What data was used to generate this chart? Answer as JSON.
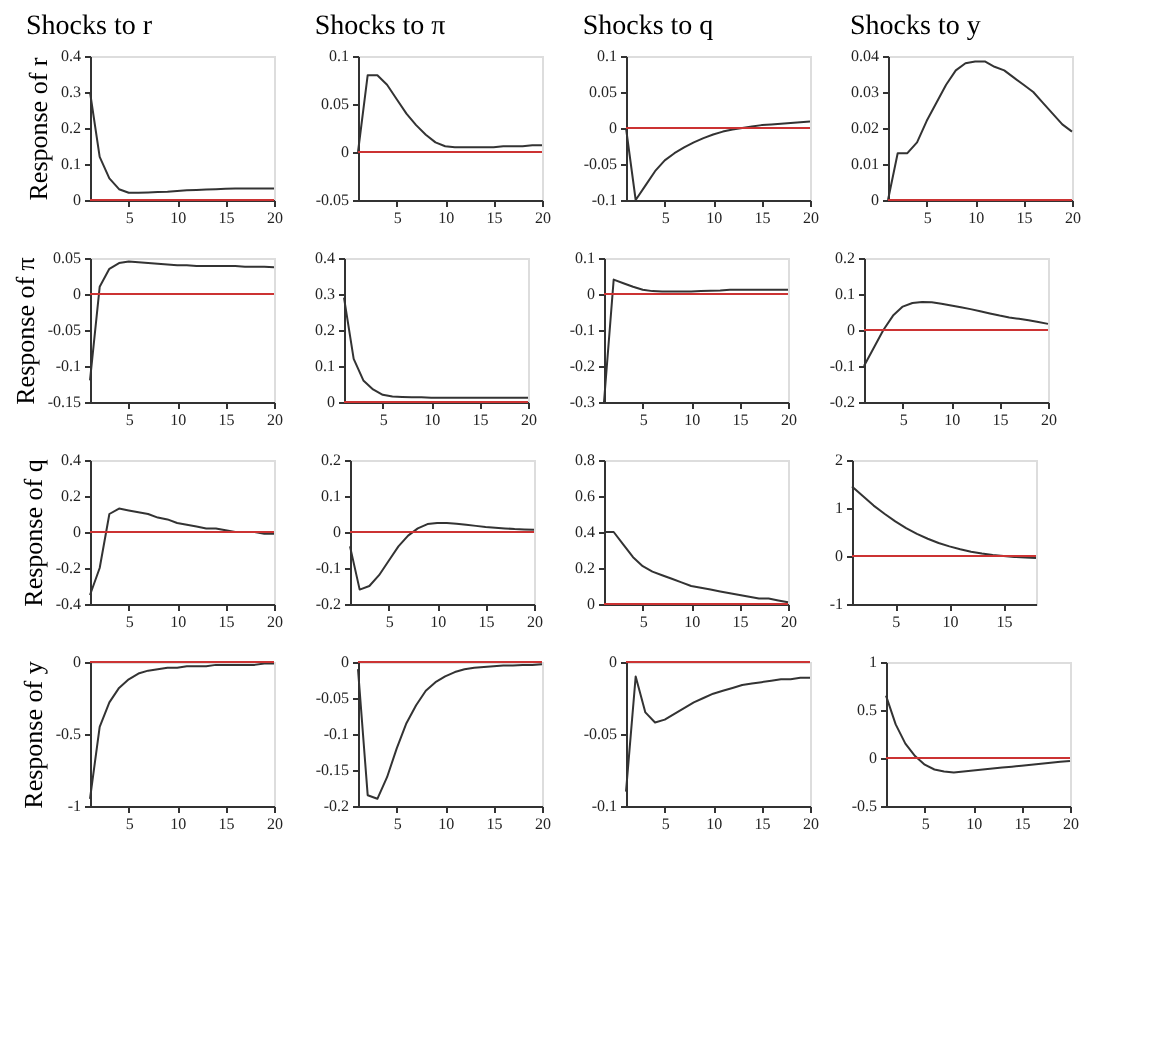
{
  "chart_data": [
    {
      "type": "line",
      "title": "Shocks to r",
      "ylabel": "Response of r",
      "x": [
        1,
        2,
        3,
        4,
        5,
        6,
        7,
        8,
        9,
        10,
        11,
        12,
        13,
        14,
        15,
        16,
        17,
        18,
        19,
        20
      ],
      "xlim": [
        1,
        20
      ],
      "xticks": [
        5,
        10,
        15,
        20
      ],
      "ylim": [
        0,
        0.4
      ],
      "yticks": [
        0,
        0.1,
        0.2,
        0.3,
        0.4
      ],
      "grid": false,
      "ref_lines": [
        {
          "axis": "y",
          "value": 0,
          "color": "#cc3333"
        }
      ],
      "series": [
        {
          "color": "#333333",
          "values": [
            0.3,
            0.12,
            0.06,
            0.03,
            0.02,
            0.02,
            0.021,
            0.022,
            0.023,
            0.025,
            0.027,
            0.028,
            0.029,
            0.03,
            0.031,
            0.032,
            0.032,
            0.032,
            0.032,
            0.032
          ]
        }
      ]
    },
    {
      "type": "line",
      "title": "Shocks to π",
      "x": [
        1,
        2,
        3,
        4,
        5,
        6,
        7,
        8,
        9,
        10,
        11,
        12,
        13,
        14,
        15,
        16,
        17,
        18,
        19,
        20
      ],
      "xlim": [
        1,
        20
      ],
      "xticks": [
        5,
        10,
        15,
        20
      ],
      "ylim": [
        -0.05,
        0.1
      ],
      "yticks": [
        -0.05,
        0,
        0.05,
        0.1
      ],
      "grid": false,
      "ref_lines": [
        {
          "axis": "y",
          "value": 0,
          "color": "#cc3333"
        }
      ],
      "series": [
        {
          "color": "#333333",
          "values": [
            0,
            0.08,
            0.08,
            0.07,
            0.055,
            0.04,
            0.028,
            0.018,
            0.01,
            0.006,
            0.005,
            0.005,
            0.005,
            0.005,
            0.005,
            0.006,
            0.006,
            0.006,
            0.007,
            0.007
          ]
        }
      ]
    },
    {
      "type": "line",
      "title": "Shocks to q",
      "x": [
        1,
        2,
        3,
        4,
        5,
        6,
        7,
        8,
        9,
        10,
        11,
        12,
        13,
        14,
        15,
        16,
        17,
        18,
        19,
        20
      ],
      "xlim": [
        1,
        20
      ],
      "xticks": [
        5,
        10,
        15,
        20
      ],
      "ylim": [
        -0.1,
        0.1
      ],
      "yticks": [
        -0.1,
        -0.05,
        0,
        0.05,
        0.1
      ],
      "grid": false,
      "ref_lines": [
        {
          "axis": "y",
          "value": 0,
          "color": "#cc3333"
        }
      ],
      "series": [
        {
          "color": "#333333",
          "values": [
            0,
            -0.1,
            -0.08,
            -0.06,
            -0.045,
            -0.035,
            -0.027,
            -0.02,
            -0.014,
            -0.009,
            -0.005,
            -0.002,
            0,
            0.002,
            0.004,
            0.005,
            0.006,
            0.007,
            0.008,
            0.009
          ]
        }
      ]
    },
    {
      "type": "line",
      "title": "Shocks to y",
      "x": [
        1,
        2,
        3,
        4,
        5,
        6,
        7,
        8,
        9,
        10,
        11,
        12,
        13,
        14,
        15,
        16,
        17,
        18,
        19,
        20
      ],
      "xlim": [
        1,
        20
      ],
      "xticks": [
        5,
        10,
        15,
        20
      ],
      "ylim": [
        0,
        0.04
      ],
      "yticks": [
        0,
        0.01,
        0.02,
        0.03,
        0.04
      ],
      "grid": false,
      "ref_lines": [
        {
          "axis": "y",
          "value": 0,
          "color": "#cc3333"
        }
      ],
      "series": [
        {
          "color": "#333333",
          "values": [
            0,
            0.013,
            0.013,
            0.016,
            0.022,
            0.027,
            0.032,
            0.036,
            0.038,
            0.0385,
            0.0385,
            0.037,
            0.036,
            0.034,
            0.032,
            0.03,
            0.027,
            0.024,
            0.021,
            0.019
          ]
        }
      ]
    },
    {
      "type": "line",
      "ylabel": "Response of π",
      "x": [
        1,
        2,
        3,
        4,
        5,
        6,
        7,
        8,
        9,
        10,
        11,
        12,
        13,
        14,
        15,
        16,
        17,
        18,
        19,
        20
      ],
      "xlim": [
        1,
        20
      ],
      "xticks": [
        5,
        10,
        15,
        20
      ],
      "ylim": [
        -0.15,
        0.05
      ],
      "yticks": [
        -0.15,
        -0.1,
        -0.05,
        0,
        0.05
      ],
      "grid": false,
      "ref_lines": [
        {
          "axis": "y",
          "value": 0,
          "color": "#cc3333"
        }
      ],
      "series": [
        {
          "color": "#333333",
          "values": [
            -0.12,
            0.01,
            0.035,
            0.043,
            0.045,
            0.044,
            0.043,
            0.042,
            0.041,
            0.04,
            0.04,
            0.039,
            0.039,
            0.039,
            0.039,
            0.039,
            0.038,
            0.038,
            0.038,
            0.037
          ]
        }
      ]
    },
    {
      "type": "line",
      "x": [
        1,
        2,
        3,
        4,
        5,
        6,
        7,
        8,
        9,
        10,
        11,
        12,
        13,
        14,
        15,
        16,
        17,
        18,
        19,
        20
      ],
      "xlim": [
        1,
        20
      ],
      "xticks": [
        5,
        10,
        15,
        20
      ],
      "ylim": [
        0,
        0.4
      ],
      "yticks": [
        0,
        0.1,
        0.2,
        0.3,
        0.4
      ],
      "grid": false,
      "ref_lines": [
        {
          "axis": "y",
          "value": 0,
          "color": "#cc3333"
        }
      ],
      "series": [
        {
          "color": "#333333",
          "values": [
            0.29,
            0.12,
            0.06,
            0.035,
            0.02,
            0.015,
            0.014,
            0.013,
            0.013,
            0.012,
            0.012,
            0.012,
            0.012,
            0.012,
            0.012,
            0.012,
            0.012,
            0.012,
            0.012,
            0.012
          ]
        }
      ]
    },
    {
      "type": "line",
      "x": [
        1,
        2,
        3,
        4,
        5,
        6,
        7,
        8,
        9,
        10,
        11,
        12,
        13,
        14,
        15,
        16,
        17,
        18,
        19,
        20
      ],
      "xlim": [
        1,
        20
      ],
      "xticks": [
        5,
        10,
        15,
        20
      ],
      "ylim": [
        -0.3,
        0.1
      ],
      "yticks": [
        -0.3,
        -0.2,
        -0.1,
        0,
        0.1
      ],
      "grid": false,
      "ref_lines": [
        {
          "axis": "y",
          "value": 0,
          "color": "#cc3333"
        }
      ],
      "series": [
        {
          "color": "#333333",
          "values": [
            -0.3,
            0.04,
            0.03,
            0.02,
            0.012,
            0.008,
            0.007,
            0.007,
            0.007,
            0.007,
            0.008,
            0.009,
            0.01,
            0.012,
            0.012,
            0.012,
            0.012,
            0.012,
            0.012,
            0.012
          ]
        }
      ]
    },
    {
      "type": "line",
      "x": [
        1,
        2,
        3,
        4,
        5,
        6,
        7,
        8,
        9,
        10,
        11,
        12,
        13,
        14,
        15,
        16,
        17,
        18,
        19,
        20
      ],
      "xlim": [
        1,
        20
      ],
      "xticks": [
        5,
        10,
        15,
        20
      ],
      "ylim": [
        -0.2,
        0.2
      ],
      "yticks": [
        -0.2,
        -0.1,
        0,
        0.1,
        0.2
      ],
      "grid": false,
      "ref_lines": [
        {
          "axis": "y",
          "value": 0,
          "color": "#cc3333"
        }
      ],
      "series": [
        {
          "color": "#333333",
          "values": [
            -0.1,
            -0.05,
            0,
            0.04,
            0.065,
            0.075,
            0.078,
            0.077,
            0.073,
            0.068,
            0.063,
            0.058,
            0.052,
            0.046,
            0.04,
            0.035,
            0.031,
            0.027,
            0.022,
            0.017
          ]
        }
      ]
    },
    {
      "type": "line",
      "ylabel": "Response of q",
      "x": [
        1,
        2,
        3,
        4,
        5,
        6,
        7,
        8,
        9,
        10,
        11,
        12,
        13,
        14,
        15,
        16,
        17,
        18,
        19,
        20
      ],
      "xlim": [
        1,
        20
      ],
      "xticks": [
        5,
        10,
        15,
        20
      ],
      "ylim": [
        -0.4,
        0.4
      ],
      "yticks": [
        -0.4,
        -0.2,
        0,
        0.2,
        0.4
      ],
      "grid": false,
      "ref_lines": [
        {
          "axis": "y",
          "value": 0,
          "color": "#cc3333"
        }
      ],
      "series": [
        {
          "color": "#333333",
          "values": [
            -0.35,
            -0.2,
            0.1,
            0.13,
            0.12,
            0.11,
            0.1,
            0.08,
            0.07,
            0.05,
            0.04,
            0.03,
            0.02,
            0.02,
            0.01,
            0,
            0,
            0,
            -0.01,
            -0.01
          ]
        }
      ]
    },
    {
      "type": "line",
      "x": [
        1,
        2,
        3,
        4,
        5,
        6,
        7,
        8,
        9,
        10,
        11,
        12,
        13,
        14,
        15,
        16,
        17,
        18,
        19,
        20
      ],
      "xlim": [
        1,
        20
      ],
      "xticks": [
        5,
        10,
        15,
        20
      ],
      "ylim": [
        -0.2,
        0.2
      ],
      "yticks": [
        -0.2,
        -0.1,
        0,
        0.1,
        0.2
      ],
      "grid": false,
      "ref_lines": [
        {
          "axis": "y",
          "value": 0,
          "color": "#cc3333"
        }
      ],
      "series": [
        {
          "color": "#333333",
          "values": [
            -0.04,
            -0.16,
            -0.15,
            -0.12,
            -0.08,
            -0.04,
            -0.01,
            0.01,
            0.022,
            0.025,
            0.025,
            0.023,
            0.02,
            0.017,
            0.014,
            0.012,
            0.01,
            0.008,
            0.007,
            0.006
          ]
        }
      ]
    },
    {
      "type": "line",
      "x": [
        1,
        2,
        3,
        4,
        5,
        6,
        7,
        8,
        9,
        10,
        11,
        12,
        13,
        14,
        15,
        16,
        17,
        18,
        19,
        20
      ],
      "xlim": [
        1,
        20
      ],
      "xticks": [
        5,
        10,
        15,
        20
      ],
      "ylim": [
        0,
        0.8
      ],
      "yticks": [
        0,
        0.2,
        0.4,
        0.6,
        0.8
      ],
      "grid": false,
      "ref_lines": [
        {
          "axis": "y",
          "value": 0,
          "color": "#cc3333"
        }
      ],
      "series": [
        {
          "color": "#333333",
          "values": [
            0.4,
            0.4,
            0.33,
            0.26,
            0.21,
            0.18,
            0.16,
            0.14,
            0.12,
            0.1,
            0.09,
            0.08,
            0.07,
            0.06,
            0.05,
            0.04,
            0.03,
            0.03,
            0.02,
            0.01
          ]
        }
      ]
    },
    {
      "type": "line",
      "x": [
        1,
        2,
        3,
        4,
        5,
        6,
        7,
        8,
        9,
        10,
        11,
        12,
        13,
        14,
        15,
        16,
        17,
        18
      ],
      "xlim": [
        1,
        18
      ],
      "xticks": [
        5,
        10,
        15
      ],
      "ylim": [
        -1,
        2
      ],
      "yticks": [
        -1,
        0,
        1,
        2
      ],
      "grid": false,
      "ref_lines": [
        {
          "axis": "y",
          "value": 0,
          "color": "#cc3333"
        }
      ],
      "series": [
        {
          "color": "#333333",
          "values": [
            1.45,
            1.25,
            1.05,
            0.88,
            0.72,
            0.58,
            0.46,
            0.36,
            0.27,
            0.2,
            0.14,
            0.09,
            0.05,
            0.02,
            0,
            -0.02,
            -0.03,
            -0.04
          ]
        }
      ]
    },
    {
      "type": "line",
      "ylabel": "Response of y",
      "x": [
        1,
        2,
        3,
        4,
        5,
        6,
        7,
        8,
        9,
        10,
        11,
        12,
        13,
        14,
        15,
        16,
        17,
        18,
        19,
        20
      ],
      "xlim": [
        1,
        20
      ],
      "xticks": [
        5,
        10,
        15,
        20
      ],
      "ylim": [
        -1,
        0
      ],
      "yticks": [
        -1,
        -0.5,
        0
      ],
      "grid": false,
      "ref_lines": [
        {
          "axis": "y",
          "value": 0,
          "color": "#cc3333"
        }
      ],
      "series": [
        {
          "color": "#333333",
          "values": [
            -0.95,
            -0.45,
            -0.28,
            -0.18,
            -0.12,
            -0.08,
            -0.06,
            -0.05,
            -0.04,
            -0.04,
            -0.03,
            -0.03,
            -0.03,
            -0.02,
            -0.02,
            -0.02,
            -0.02,
            -0.02,
            -0.01,
            -0.01
          ]
        }
      ]
    },
    {
      "type": "line",
      "x": [
        1,
        2,
        3,
        4,
        5,
        6,
        7,
        8,
        9,
        10,
        11,
        12,
        13,
        14,
        15,
        16,
        17,
        18,
        19,
        20
      ],
      "xlim": [
        1,
        20
      ],
      "xticks": [
        5,
        10,
        15,
        20
      ],
      "ylim": [
        -0.2,
        0
      ],
      "yticks": [
        -0.2,
        -0.15,
        -0.1,
        -0.05,
        0
      ],
      "grid": false,
      "ref_lines": [
        {
          "axis": "y",
          "value": 0,
          "color": "#cc3333"
        }
      ],
      "series": [
        {
          "color": "#333333",
          "values": [
            -0.01,
            -0.185,
            -0.19,
            -0.16,
            -0.12,
            -0.085,
            -0.06,
            -0.04,
            -0.028,
            -0.02,
            -0.014,
            -0.01,
            -0.008,
            -0.007,
            -0.006,
            -0.005,
            -0.005,
            -0.004,
            -0.004,
            -0.003
          ]
        }
      ]
    },
    {
      "type": "line",
      "x": [
        1,
        2,
        3,
        4,
        5,
        6,
        7,
        8,
        9,
        10,
        11,
        12,
        13,
        14,
        15,
        16,
        17,
        18,
        19,
        20
      ],
      "xlim": [
        1,
        20
      ],
      "xticks": [
        5,
        10,
        15,
        20
      ],
      "ylim": [
        -0.1,
        0
      ],
      "yticks": [
        -0.1,
        -0.05,
        0
      ],
      "grid": false,
      "ref_lines": [
        {
          "axis": "y",
          "value": 0,
          "color": "#cc3333"
        }
      ],
      "series": [
        {
          "color": "#333333",
          "values": [
            -0.09,
            -0.01,
            -0.035,
            -0.042,
            -0.04,
            -0.036,
            -0.032,
            -0.028,
            -0.025,
            -0.022,
            -0.02,
            -0.018,
            -0.016,
            -0.015,
            -0.014,
            -0.013,
            -0.012,
            -0.012,
            -0.011,
            -0.011
          ]
        }
      ]
    },
    {
      "type": "line",
      "x": [
        1,
        2,
        3,
        4,
        5,
        6,
        7,
        8,
        9,
        10,
        11,
        12,
        13,
        14,
        15,
        16,
        17,
        18,
        19,
        20
      ],
      "xlim": [
        1,
        20
      ],
      "xticks": [
        5,
        10,
        15,
        20
      ],
      "ylim": [
        -0.5,
        1
      ],
      "yticks": [
        -0.5,
        0,
        0.5,
        1
      ],
      "grid": false,
      "ref_lines": [
        {
          "axis": "y",
          "value": 0,
          "color": "#cc3333"
        }
      ],
      "series": [
        {
          "color": "#333333",
          "values": [
            0.65,
            0.35,
            0.15,
            0.02,
            -0.07,
            -0.12,
            -0.14,
            -0.15,
            -0.14,
            -0.13,
            -0.12,
            -0.11,
            -0.1,
            -0.09,
            -0.08,
            -0.07,
            -0.06,
            -0.05,
            -0.04,
            -0.03
          ]
        }
      ]
    }
  ]
}
